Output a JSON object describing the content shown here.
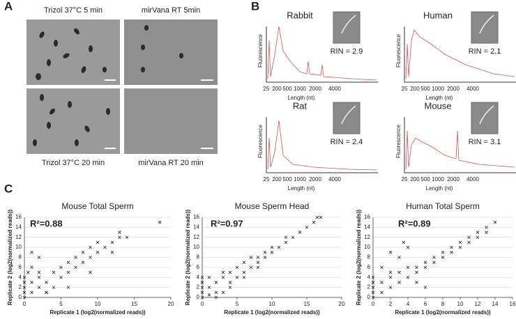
{
  "panels": {
    "a": {
      "label": "A",
      "images": [
        {
          "caption": "Trizol 37°C 5 min"
        },
        {
          "caption": "mirVana RT 5min"
        },
        {
          "caption": "Trizol 37°C 20 min"
        },
        {
          "caption": "mirVana RT 20 min"
        }
      ]
    },
    "b": {
      "label": "B",
      "plots": [
        {
          "title": "Rabbit",
          "annotation": "RIN = 2.9",
          "ylabel": "Fluorescence",
          "xlabel": "Length (nt)",
          "xticks": [
            25,
            200,
            500,
            1000,
            2000,
            4000
          ]
        },
        {
          "title": "Human",
          "annotation": "RIN = 2.1",
          "ylabel": "Fluorescence",
          "xlabel": "Length (nt)",
          "xticks": [
            25,
            200,
            500,
            1000,
            2000,
            4000
          ]
        },
        {
          "title": "Rat",
          "annotation": "RIN = 2.4",
          "ylabel": "Fluorescence",
          "xlabel": "Length (nt)",
          "xticks": [
            25,
            200,
            500,
            1000,
            2000,
            4000
          ]
        },
        {
          "title": "Mouse",
          "annotation": "RIN = 3.1",
          "ylabel": "Fluorescence",
          "xlabel": "Length (nt)",
          "xticks": [
            25,
            200,
            500,
            1000,
            2000,
            4000
          ]
        }
      ]
    },
    "c": {
      "label": "C"
    }
  },
  "chart_data": [
    {
      "type": "scatter",
      "title": "Mouse Total Sperm",
      "annotation": "R²=0.88",
      "xlabel": "Replicate 1 (log2(normalized reads))",
      "ylabel": "Replicate 2 (log2(normalized reads))",
      "xlim": [
        0,
        20
      ],
      "xticks": [
        0,
        5,
        10,
        15,
        20
      ],
      "ylim": [
        0,
        16
      ],
      "yticks": [
        0,
        2,
        4,
        6,
        8,
        10,
        12,
        14,
        16
      ],
      "grid": true,
      "color": "#222222",
      "x": [
        0,
        0,
        0,
        0,
        0,
        0.5,
        1,
        1,
        1,
        2,
        2,
        2,
        3,
        3,
        4,
        4,
        5,
        5,
        6,
        6,
        7,
        7,
        8,
        8,
        9,
        9,
        10,
        10,
        11,
        12,
        12,
        13,
        13,
        14,
        18.5,
        2,
        3,
        1,
        6,
        9
      ],
      "y": [
        0,
        1,
        2,
        3,
        4,
        5,
        1,
        3,
        6,
        2,
        4,
        5,
        1,
        3,
        2,
        5,
        4,
        6,
        5,
        7,
        6,
        8,
        7,
        9,
        8,
        10,
        9,
        11,
        10,
        11,
        9,
        12,
        13,
        12,
        15,
        8,
        1,
        9,
        2,
        5
      ]
    },
    {
      "type": "scatter",
      "title": "Mouse Sperm Head",
      "annotation": "R²=0.97",
      "xlabel": "Replicate 1 (log2(normalized reads))",
      "ylabel": "Replicate 2 (log2(normalized reads))",
      "xlim": [
        0,
        20
      ],
      "xticks": [
        0,
        5,
        10,
        15,
        20
      ],
      "ylim": [
        0,
        16
      ],
      "yticks": [
        0,
        2,
        4,
        6,
        8,
        10,
        12,
        14,
        16
      ],
      "grid": true,
      "color": "#222222",
      "x": [
        0,
        0,
        0,
        0,
        0,
        1,
        1,
        2,
        2,
        3,
        3,
        4,
        4,
        5,
        5,
        6,
        6,
        7,
        7,
        8,
        8,
        9,
        9,
        10,
        10,
        11,
        12,
        12,
        13,
        14,
        15,
        16,
        16.5,
        17,
        1,
        3,
        4,
        2,
        6,
        8
      ],
      "y": [
        0,
        1,
        2,
        3,
        4,
        0.5,
        2,
        1,
        3,
        1,
        4,
        3,
        5,
        4,
        6,
        5,
        7,
        6,
        8,
        7,
        8,
        8,
        9,
        9,
        10,
        10,
        11,
        12,
        12,
        13,
        14,
        15,
        16,
        16,
        4,
        5,
        2,
        0,
        4,
        6
      ]
    },
    {
      "type": "scatter",
      "title": "Human Total Sperm",
      "annotation": "R²=0.89",
      "xlabel": "Replicate 1 (log2(normalized reads))",
      "ylabel": "Replicate 2 (log2(normalized reads))",
      "xlim": [
        0,
        16
      ],
      "xticks": [
        0,
        2,
        4,
        6,
        8,
        10,
        12,
        14,
        16
      ],
      "ylim": [
        0,
        16
      ],
      "yticks": [
        0,
        2,
        4,
        6,
        8,
        10,
        12,
        14,
        16
      ],
      "grid": true,
      "color": "#222222",
      "x": [
        0,
        0,
        0,
        0,
        0,
        1,
        1,
        2,
        2,
        2,
        3,
        3,
        4,
        4,
        5,
        5,
        6,
        6,
        7,
        7,
        8,
        8,
        9,
        9,
        10,
        10,
        11,
        11,
        12,
        12,
        13,
        13,
        14,
        2,
        3,
        4,
        5,
        6,
        1,
        3.5
      ],
      "y": [
        0,
        1,
        2,
        3,
        4,
        1,
        3,
        2,
        4,
        5,
        3,
        5,
        4,
        6,
        5,
        6,
        6,
        7,
        7,
        8,
        8,
        9,
        9,
        10,
        10,
        11,
        11,
        12,
        12,
        13,
        14,
        13,
        15,
        9,
        8,
        10,
        3,
        2,
        6,
        11
      ]
    }
  ]
}
